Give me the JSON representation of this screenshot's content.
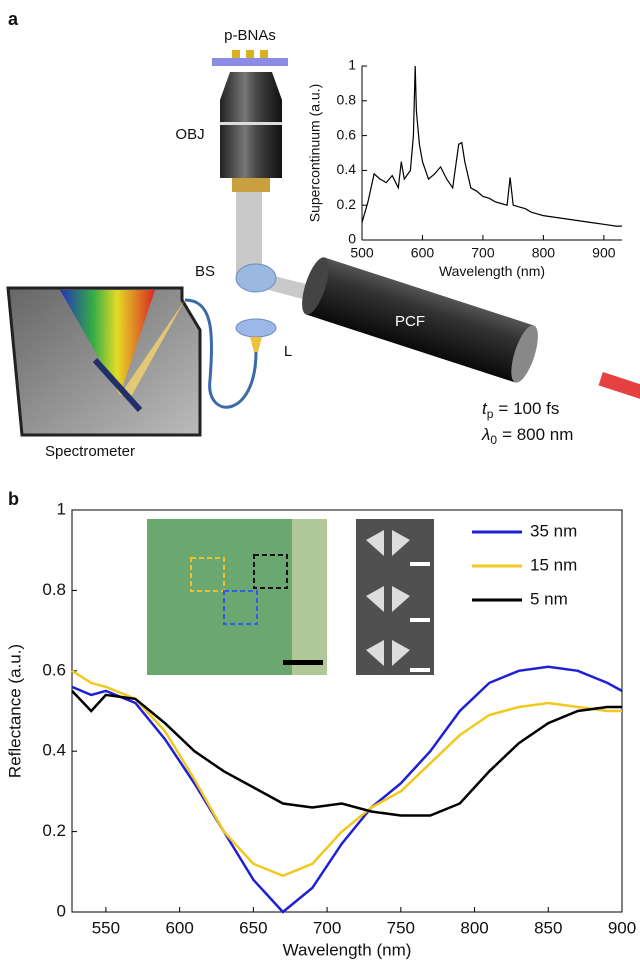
{
  "diagram": {
    "panel_a": "a",
    "panel_b": "b",
    "labels": {
      "sample": "p-BNAs",
      "objective": "OBJ",
      "beam_splitter": "BS",
      "lens": "L",
      "fiber": "PCF",
      "spectrometer": "Spectrometer"
    },
    "pulse": [
      {
        "symbol": "t",
        "subscript": "p",
        "text": "= 100 fs"
      },
      {
        "symbol": "λ",
        "subscript": "0",
        "text": "= 800 nm"
      }
    ]
  },
  "chart_data": [
    {
      "type": "line",
      "xlabel": "Wavelength (nm)",
      "ylabel": "Supercontinuum (a.u.)",
      "x": [
        500,
        510,
        520,
        530,
        540,
        550,
        560,
        565,
        570,
        580,
        585,
        588,
        590,
        595,
        600,
        610,
        620,
        630,
        640,
        650,
        660,
        665,
        670,
        680,
        690,
        700,
        710,
        720,
        730,
        740,
        745,
        750,
        760,
        770,
        780,
        790,
        800,
        820,
        840,
        860,
        880,
        900,
        920,
        930
      ],
      "series": [
        {
          "color": "#000000",
          "values": [
            0.1,
            0.22,
            0.38,
            0.35,
            0.33,
            0.37,
            0.3,
            0.45,
            0.35,
            0.4,
            0.6,
            1.0,
            0.74,
            0.55,
            0.45,
            0.35,
            0.38,
            0.42,
            0.35,
            0.3,
            0.55,
            0.56,
            0.45,
            0.3,
            0.28,
            0.25,
            0.24,
            0.22,
            0.21,
            0.2,
            0.36,
            0.2,
            0.19,
            0.18,
            0.16,
            0.15,
            0.14,
            0.13,
            0.12,
            0.11,
            0.1,
            0.09,
            0.08,
            0.08
          ]
        }
      ],
      "xlim": [
        500,
        930
      ],
      "xticks": [
        500,
        600,
        700,
        800,
        900
      ],
      "ylim": [
        0,
        1
      ],
      "yticks": [
        0,
        0.2,
        0.4,
        0.6,
        0.8,
        1
      ],
      "box": false
    },
    {
      "type": "line",
      "xlabel": "Wavelength (nm)",
      "ylabel": "Reflectance (a.u.)",
      "x": [
        527,
        540,
        550,
        570,
        590,
        610,
        630,
        650,
        670,
        690,
        710,
        730,
        750,
        770,
        790,
        810,
        830,
        850,
        870,
        890,
        900
      ],
      "series": [
        {
          "name": "35 nm",
          "color": "#1f1fd6",
          "values": [
            0.56,
            0.54,
            0.55,
            0.52,
            0.43,
            0.32,
            0.2,
            0.08,
            0.0,
            0.06,
            0.17,
            0.26,
            0.32,
            0.4,
            0.5,
            0.57,
            0.6,
            0.61,
            0.6,
            0.57,
            0.55
          ]
        },
        {
          "name": "15 nm",
          "color": "#f2c81e",
          "values": [
            0.6,
            0.57,
            0.56,
            0.53,
            0.45,
            0.33,
            0.2,
            0.12,
            0.09,
            0.12,
            0.2,
            0.26,
            0.3,
            0.37,
            0.44,
            0.49,
            0.51,
            0.52,
            0.51,
            0.5,
            0.5
          ]
        },
        {
          "name": "5 nm",
          "color": "#000000",
          "values": [
            0.55,
            0.5,
            0.54,
            0.53,
            0.47,
            0.4,
            0.35,
            0.31,
            0.27,
            0.26,
            0.27,
            0.25,
            0.24,
            0.24,
            0.27,
            0.35,
            0.42,
            0.47,
            0.5,
            0.51,
            0.51
          ]
        }
      ],
      "xlim": [
        527,
        900
      ],
      "xticks": [
        550,
        600,
        650,
        700,
        750,
        800,
        850,
        900
      ],
      "ylim": [
        0,
        1
      ],
      "yticks": [
        0,
        0.2,
        0.4,
        0.6,
        0.8,
        1
      ],
      "box": true,
      "legend": "upper right"
    }
  ]
}
